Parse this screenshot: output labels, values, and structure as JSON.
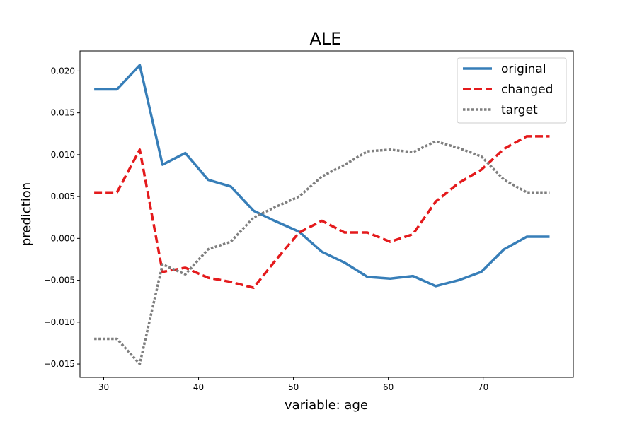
{
  "chart_data": {
    "type": "line",
    "title": "ALE",
    "xlabel": "variable: age",
    "ylabel": "prediction",
    "xlim": [
      27.5,
      79.5
    ],
    "ylim": [
      -0.0166,
      0.0224
    ],
    "xticks": [
      30,
      40,
      50,
      60,
      70
    ],
    "xtick_labels": [
      "30",
      "40",
      "50",
      "60",
      "70"
    ],
    "yticks": [
      -0.015,
      -0.01,
      -0.005,
      0.0,
      0.005,
      0.01,
      0.015,
      0.02
    ],
    "ytick_labels": [
      "−0.015",
      "−0.010",
      "−0.005",
      "0.000",
      "0.005",
      "0.010",
      "0.015",
      "0.020"
    ],
    "grid": false,
    "legend_position": "top-right",
    "x": [
      29,
      31.4,
      33.8,
      36.2,
      38.6,
      41,
      43.4,
      45.8,
      48.2,
      50.6,
      53,
      55.4,
      57.8,
      60.2,
      62.6,
      65,
      67.4,
      69.8,
      72.2,
      74.6,
      77
    ],
    "series": [
      {
        "name": "original",
        "color": "#377eb8",
        "style": "solid",
        "values": [
          0.0178,
          0.0178,
          0.0207,
          0.0088,
          0.0102,
          0.007,
          0.0062,
          0.0033,
          0.002,
          0.0008,
          -0.0016,
          -0.0029,
          -0.0046,
          -0.0048,
          -0.0045,
          -0.0057,
          -0.005,
          -0.004,
          -0.0013,
          0.0002,
          0.0002
        ]
      },
      {
        "name": "changed",
        "color": "#e41a1c",
        "style": "dashed",
        "values": [
          0.0055,
          0.0055,
          0.0106,
          -0.004,
          -0.0035,
          -0.0047,
          -0.0052,
          -0.0059,
          -0.0025,
          0.0007,
          0.0021,
          0.0007,
          0.0007,
          -0.0004,
          0.0005,
          0.0044,
          0.0066,
          0.0082,
          0.0107,
          0.0122,
          0.0122
        ]
      },
      {
        "name": "target",
        "color": "#7f7f7f",
        "style": "dotted",
        "values": [
          -0.012,
          -0.012,
          -0.015,
          -0.0031,
          -0.0043,
          -0.0013,
          -0.0004,
          0.0025,
          0.0038,
          0.005,
          0.0074,
          0.0088,
          0.0104,
          0.0106,
          0.0103,
          0.0116,
          0.0108,
          0.0098,
          0.007,
          0.0055,
          0.0055
        ]
      }
    ]
  }
}
